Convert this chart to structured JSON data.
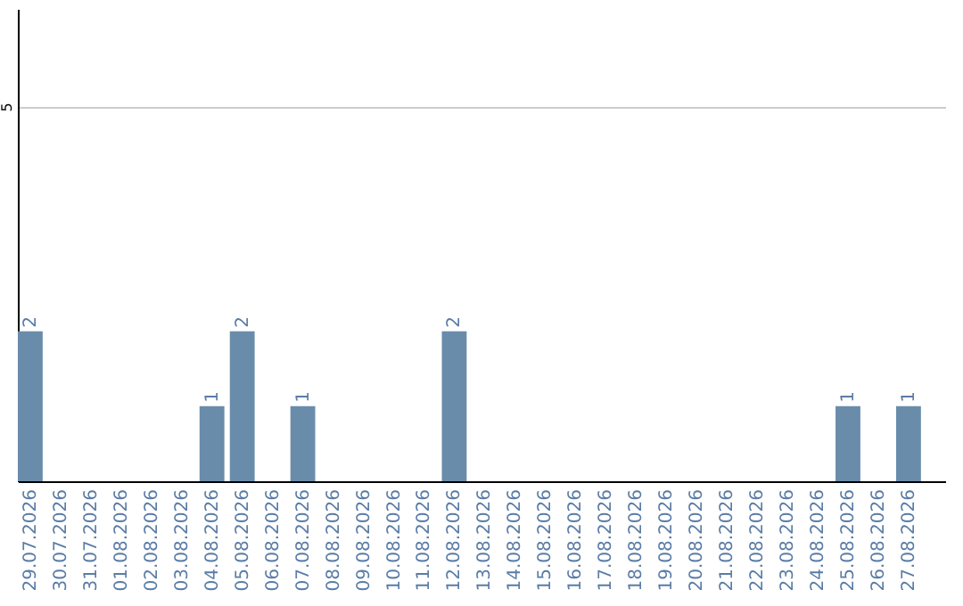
{
  "chart_data": {
    "type": "bar",
    "categories": [
      "29.07.2026",
      "30.07.2026",
      "31.07.2026",
      "01.08.2026",
      "02.08.2026",
      "03.08.2026",
      "04.08.2026",
      "05.08.2026",
      "06.08.2026",
      "07.08.2026",
      "08.08.2026",
      "09.08.2026",
      "10.08.2026",
      "11.08.2026",
      "12.08.2026",
      "13.08.2026",
      "14.08.2026",
      "15.08.2026",
      "16.08.2026",
      "17.08.2026",
      "18.08.2026",
      "19.08.2026",
      "20.08.2026",
      "21.08.2026",
      "22.08.2026",
      "23.08.2026",
      "24.08.2026",
      "25.08.2026",
      "26.08.2026",
      "27.08.2026"
    ],
    "values": [
      2,
      0,
      0,
      0,
      0,
      0,
      1,
      2,
      0,
      1,
      0,
      0,
      0,
      0,
      2,
      0,
      0,
      0,
      0,
      0,
      0,
      0,
      0,
      0,
      0,
      0,
      0,
      1,
      0,
      1
    ],
    "value_labels": [
      "2",
      null,
      null,
      null,
      null,
      null,
      "1",
      "2",
      null,
      "1",
      null,
      null,
      null,
      null,
      "2",
      null,
      null,
      null,
      null,
      null,
      null,
      null,
      null,
      null,
      null,
      null,
      null,
      "1",
      null,
      "1"
    ],
    "color": "#6a8cab",
    "ylim": [
      0,
      6.3
    ],
    "yticks": [
      {
        "value": 0,
        "label": null
      },
      5
    ],
    "grid": "y"
  }
}
